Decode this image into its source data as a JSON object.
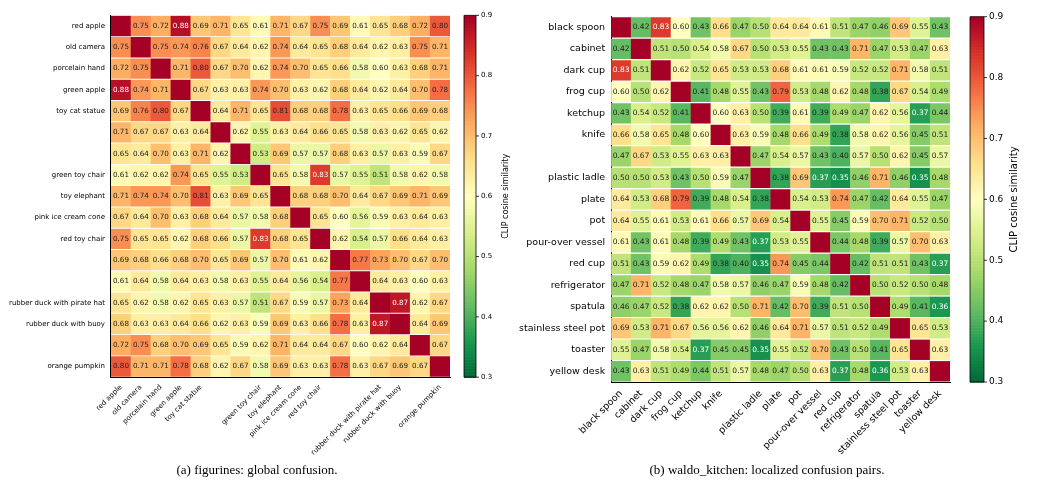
{
  "chart_data": [
    {
      "type": "heatmap",
      "title": "(a) figurines: global confusion.",
      "clabel": "CLIP cosine similarity",
      "clim": [
        0.3,
        0.9
      ],
      "cticks": [
        0.3,
        0.4,
        0.5,
        0.6,
        0.7,
        0.8,
        0.9
      ],
      "categories": [
        "red apple",
        "old camera",
        "porcelain hand",
        "green apple",
        "toy cat statue",
        null,
        null,
        "green toy chair",
        "toy elephant",
        "pink ice cream cone",
        "red toy chair",
        null,
        null,
        "rubber duck with pirate hat",
        "rubber duck with buoy",
        null,
        "orange pumpkin"
      ],
      "y_categories": [
        "red apple",
        "old camera",
        "porcelain hand",
        "green apple",
        "toy cat statue",
        null,
        null,
        "green toy chair",
        "toy elephant",
        "pink ice cream cone",
        "red toy chair",
        null,
        null,
        "rubber duck with pirate hat",
        "rubber duck with buoy",
        null,
        "orange pumpkin"
      ],
      "cells": [
        [
          0.9,
          0.75,
          0.72,
          0.88,
          0.69,
          0.71,
          0.65,
          0.61,
          0.71,
          0.67,
          0.75,
          0.69,
          0.61,
          0.65,
          0.68,
          0.72,
          0.8
        ],
        [
          0.75,
          0.9,
          0.75,
          0.74,
          0.76,
          0.67,
          0.64,
          0.62,
          0.74,
          0.64,
          0.65,
          0.68,
          0.64,
          0.62,
          0.63,
          0.75,
          0.71
        ],
        [
          0.72,
          0.75,
          0.9,
          0.71,
          0.8,
          0.67,
          0.7,
          0.62,
          0.74,
          0.7,
          0.65,
          0.66,
          0.58,
          0.6,
          0.63,
          0.68,
          0.71
        ],
        [
          0.88,
          0.74,
          0.71,
          0.9,
          0.67,
          0.63,
          0.63,
          0.74,
          0.7,
          0.63,
          0.62,
          0.68,
          0.64,
          0.62,
          0.64,
          0.7,
          0.78
        ],
        [
          0.69,
          0.76,
          0.8,
          0.67,
          0.9,
          0.64,
          0.71,
          0.65,
          0.81,
          0.68,
          0.68,
          0.78,
          0.63,
          0.65,
          0.66,
          0.69,
          0.68
        ],
        [
          0.71,
          0.67,
          0.67,
          0.63,
          0.64,
          0.9,
          0.62,
          0.55,
          0.63,
          0.64,
          0.66,
          0.65,
          0.58,
          0.63,
          0.62,
          0.65,
          0.62
        ],
        [
          0.65,
          0.64,
          0.7,
          0.63,
          0.71,
          0.62,
          0.9,
          0.53,
          0.69,
          0.57,
          0.57,
          0.68,
          0.63,
          0.57,
          0.63,
          0.59,
          0.67
        ],
        [
          0.61,
          0.62,
          0.62,
          0.74,
          0.65,
          0.55,
          0.53,
          0.9,
          0.65,
          0.58,
          0.83,
          0.57,
          0.55,
          0.51,
          0.58,
          0.62,
          0.58
        ],
        [
          0.71,
          0.74,
          0.74,
          0.7,
          0.81,
          0.63,
          0.69,
          0.65,
          0.9,
          0.68,
          0.68,
          0.7,
          0.64,
          0.67,
          0.69,
          0.71,
          0.69
        ],
        [
          0.67,
          0.64,
          0.7,
          0.63,
          0.68,
          0.64,
          0.57,
          0.58,
          0.68,
          0.9,
          0.65,
          0.6,
          0.56,
          0.59,
          0.63,
          0.64,
          0.63
        ],
        [
          0.75,
          0.65,
          0.65,
          0.62,
          0.68,
          0.66,
          0.57,
          0.83,
          0.68,
          0.65,
          0.9,
          0.62,
          0.54,
          0.57,
          0.66,
          0.64,
          0.63
        ],
        [
          0.69,
          0.68,
          0.66,
          0.68,
          0.7,
          0.65,
          0.69,
          0.57,
          0.7,
          0.61,
          0.62,
          0.9,
          0.77,
          0.73,
          0.7,
          0.67,
          0.7
        ],
        [
          0.61,
          0.64,
          0.58,
          0.64,
          0.63,
          0.58,
          0.63,
          0.55,
          0.64,
          0.56,
          0.54,
          0.77,
          0.9,
          0.64,
          0.63,
          0.6,
          0.63
        ],
        [
          0.65,
          0.62,
          0.58,
          0.62,
          0.65,
          0.63,
          0.57,
          0.51,
          0.67,
          0.59,
          0.57,
          0.73,
          0.64,
          0.9,
          0.87,
          0.62,
          0.67
        ],
        [
          0.68,
          0.63,
          0.63,
          0.64,
          0.66,
          0.62,
          0.63,
          0.59,
          0.69,
          0.63,
          0.66,
          0.78,
          0.63,
          0.87,
          0.9,
          0.64,
          0.69
        ],
        [
          0.72,
          0.75,
          0.68,
          0.7,
          0.69,
          0.65,
          0.59,
          0.62,
          0.71,
          0.64,
          0.64,
          0.67,
          0.6,
          0.62,
          0.64,
          0.9,
          0.67
        ],
        [
          0.8,
          0.71,
          0.71,
          0.78,
          0.68,
          0.62,
          0.67,
          0.58,
          0.69,
          0.63,
          0.63,
          0.78,
          0.63,
          0.67,
          0.69,
          0.67,
          0.9
        ]
      ],
      "cell_labels": [
        [
          null,
          "0.75",
          "0.72",
          "0.88",
          "0.69",
          "0.71",
          "0.65",
          "0.61",
          "0.71",
          "0.67",
          "0.75",
          "0.69",
          "0.61",
          "0.65",
          "0.68",
          "0.72",
          "0.80"
        ],
        [
          "0.75",
          null,
          "0.75",
          "0.74",
          "0.76",
          "0.67",
          "0.64",
          "0.62",
          "0.74",
          "0.64",
          "0.65",
          "0.68",
          "0.64",
          "0.62",
          "0.63",
          "0.75",
          "0.71"
        ],
        [
          "0.72",
          "0.75",
          null,
          "0.71",
          "0.80",
          "0.67",
          "0.70",
          "0.62",
          "0.74",
          "0.70",
          "0.65",
          "0.66",
          "0.58",
          "0.60",
          "0.63",
          "0.68",
          "0.71"
        ],
        [
          "0.88",
          "0.74",
          "0.71",
          null,
          "0.67",
          "0.63",
          "0.63",
          "0.74",
          "0.70",
          "0.63",
          "0.62",
          "0.68",
          "0.64",
          "0.62",
          "0.64",
          "0.70",
          "0.78"
        ],
        [
          "0.69",
          "0.76",
          "0.80",
          "0.67",
          null,
          "0.64",
          "0.71",
          "0.65",
          "0.81",
          "0.68",
          "0.68",
          "0.78",
          "0.63",
          "0.65",
          "0.66",
          "0.69",
          "0.68"
        ],
        [
          "0.71",
          "0.67",
          "0.67",
          "0.63",
          "0.64",
          null,
          "0.62",
          "0.55",
          "0.63",
          "0.64",
          "0.66",
          "0.65",
          "0.58",
          "0.63",
          "0.62",
          "0.65",
          "0.62"
        ],
        [
          "0.65",
          "0.64",
          "0.70",
          "0.63",
          "0.71",
          "0.62",
          null,
          "0.53",
          "0.69",
          "0.57",
          "0.57",
          "0.68",
          "0.63",
          "0.57",
          "0.63",
          "0.59",
          "0.67"
        ],
        [
          "0.61",
          "0.62",
          "0.62",
          "0.74",
          "0.65",
          "0.55",
          "0.53",
          null,
          "0.65",
          "0.58",
          "0.83",
          "0.57",
          "0.55",
          "0.51",
          "0.58",
          "0.62",
          "0.58"
        ],
        [
          "0.71",
          "0.74",
          "0.74",
          "0.70",
          "0.81",
          "0.63",
          "0.69",
          "0.65",
          null,
          "0.68",
          "0.68",
          "0.70",
          "0.64",
          "0.67",
          "0.69",
          "0.71",
          "0.69"
        ],
        [
          "0.67",
          "0.64",
          "0.70",
          "0.63",
          "0.68",
          "0.64",
          "0.57",
          "0.58",
          "0.68",
          null,
          "0.65",
          "0.60",
          "0.56",
          "0.59",
          "0.63",
          "0.64",
          "0.63"
        ],
        [
          "0.75",
          "0.65",
          "0.65",
          "0.62",
          "0.68",
          "0.66",
          "0.57",
          "0.83",
          "0.68",
          "0.65",
          null,
          "0.62",
          "0.54",
          "0.57",
          "0.66",
          "0.64",
          "0.63"
        ],
        [
          "0.69",
          "0.68",
          "0.66",
          "0.68",
          "0.70",
          "0.65",
          "0.69",
          "0.57",
          "0.70",
          "0.61",
          "0.62",
          null,
          "0.77",
          "0.73",
          "0.70",
          "0.67",
          "0.70"
        ],
        [
          "0.61",
          "0.64",
          "0.58",
          "0.64",
          "0.63",
          "0.58",
          "0.63",
          "0.55",
          "0.64",
          "0.56",
          "0.54",
          "0.77",
          null,
          "0.64",
          "0.63",
          "0.60",
          "0.63"
        ],
        [
          "0.65",
          "0.62",
          "0.58",
          "0.62",
          "0.65",
          "0.63",
          "0.57",
          "0.51",
          "0.67",
          "0.59",
          "0.57",
          "0.73",
          "0.64",
          null,
          "0.87",
          "0.62",
          "0.67"
        ],
        [
          "0.68",
          "0.63",
          "0.63",
          "0.64",
          "0.66",
          "0.62",
          "0.63",
          "0.59",
          "0.69",
          "0.63",
          "0.66",
          "0.78",
          "0.63",
          "0.87",
          null,
          "0.64",
          "0.69"
        ],
        [
          "0.72",
          "0.75",
          "0.68",
          "0.70",
          "0.69",
          "0.65",
          "0.59",
          "0.62",
          "0.71",
          "0.64",
          "0.64",
          "0.67",
          "0.60",
          "0.62",
          "0.64",
          null,
          "0.67"
        ],
        [
          "0.80",
          "0.71",
          "0.71",
          "0.78",
          "0.68",
          "0.62",
          "0.67",
          "0.58",
          "0.69",
          "0.63",
          "0.63",
          "0.78",
          "0.63",
          "0.67",
          "0.69",
          "0.67",
          null
        ]
      ]
    },
    {
      "type": "heatmap",
      "title": "(b) waldo_kitchen: localized confusion pairs.",
      "clabel": "CLIP cosine similarity",
      "clim": [
        0.3,
        0.9
      ],
      "cticks": [
        0.3,
        0.4,
        0.5,
        0.6,
        0.7,
        0.8,
        0.9
      ],
      "categories": [
        "black spoon",
        "cabinet",
        "dark cup",
        "frog cup",
        "ketchup",
        "knife",
        null,
        "plastic ladle",
        "plate",
        "pot",
        "pour-over vessel",
        "red cup",
        "refrigerator",
        "spatula",
        "stainless steel pot",
        "toaster",
        "yellow desk"
      ],
      "y_categories": [
        "black spoon",
        "cabinet",
        "dark cup",
        "frog cup",
        "ketchup",
        "knife",
        null,
        "plastic ladle",
        "plate",
        "pot",
        "pour-over vessel",
        "red cup",
        "refrigerator",
        "spatula",
        "stainless steel pot",
        "toaster",
        "yellow desk"
      ],
      "cells": [
        [
          0.9,
          0.42,
          0.83,
          0.6,
          0.43,
          0.66,
          0.47,
          0.5,
          0.64,
          0.64,
          0.61,
          0.51,
          0.47,
          0.46,
          0.69,
          0.55,
          0.43
        ],
        [
          0.42,
          0.9,
          0.51,
          0.5,
          0.54,
          0.58,
          0.67,
          0.5,
          0.53,
          0.55,
          0.43,
          0.43,
          0.71,
          0.47,
          0.53,
          0.47,
          0.63
        ],
        [
          0.83,
          0.51,
          0.9,
          0.62,
          0.52,
          0.65,
          0.53,
          0.53,
          0.68,
          0.61,
          0.61,
          0.59,
          0.52,
          0.52,
          0.71,
          0.58,
          0.51
        ],
        [
          0.6,
          0.5,
          0.62,
          0.9,
          0.41,
          0.48,
          0.55,
          0.43,
          0.79,
          0.53,
          0.48,
          0.62,
          0.48,
          0.38,
          0.67,
          0.54,
          0.49
        ],
        [
          0.43,
          0.54,
          0.52,
          0.41,
          0.9,
          0.6,
          0.63,
          0.5,
          0.39,
          0.61,
          0.39,
          0.49,
          0.47,
          0.62,
          0.56,
          0.37,
          0.44
        ],
        [
          0.66,
          0.58,
          0.65,
          0.48,
          0.6,
          0.9,
          0.63,
          0.59,
          0.48,
          0.66,
          0.49,
          0.38,
          0.58,
          0.62,
          0.56,
          0.45,
          0.51
        ],
        [
          0.47,
          0.67,
          0.53,
          0.55,
          0.63,
          0.63,
          0.9,
          0.47,
          0.54,
          0.57,
          0.43,
          0.4,
          0.57,
          0.5,
          0.62,
          0.45,
          0.57
        ],
        [
          0.5,
          0.5,
          0.53,
          0.43,
          0.5,
          0.59,
          0.47,
          0.9,
          0.38,
          0.69,
          0.37,
          0.35,
          0.46,
          0.71,
          0.46,
          0.35,
          0.48
        ],
        [
          0.64,
          0.53,
          0.68,
          0.79,
          0.39,
          0.48,
          0.54,
          0.38,
          0.9,
          0.54,
          0.53,
          0.74,
          0.47,
          0.42,
          0.64,
          0.55,
          0.47
        ],
        [
          0.64,
          0.55,
          0.61,
          0.53,
          0.61,
          0.66,
          0.57,
          0.69,
          0.54,
          0.9,
          0.55,
          0.45,
          0.59,
          0.7,
          0.71,
          0.52,
          0.5
        ],
        [
          0.61,
          0.43,
          0.61,
          0.48,
          0.39,
          0.49,
          0.43,
          0.37,
          0.53,
          0.55,
          0.9,
          0.44,
          0.48,
          0.39,
          0.57,
          0.7,
          0.63
        ],
        [
          0.51,
          0.43,
          0.59,
          0.62,
          0.49,
          0.38,
          0.4,
          0.35,
          0.74,
          0.45,
          0.44,
          0.9,
          0.42,
          0.51,
          0.51,
          0.43,
          0.37
        ],
        [
          0.47,
          0.71,
          0.52,
          0.48,
          0.47,
          0.58,
          0.57,
          0.46,
          0.47,
          0.59,
          0.48,
          0.42,
          0.9,
          0.5,
          0.52,
          0.5,
          0.48
        ],
        [
          0.46,
          0.47,
          0.52,
          0.38,
          0.62,
          0.62,
          0.5,
          0.71,
          0.42,
          0.7,
          0.39,
          0.51,
          0.5,
          0.9,
          0.49,
          0.41,
          0.36
        ],
        [
          0.69,
          0.53,
          0.71,
          0.67,
          0.56,
          0.56,
          0.62,
          0.46,
          0.64,
          0.71,
          0.57,
          0.51,
          0.52,
          0.49,
          0.9,
          0.65,
          0.53
        ],
        [
          0.55,
          0.47,
          0.58,
          0.54,
          0.37,
          0.45,
          0.45,
          0.35,
          0.55,
          0.52,
          0.7,
          0.43,
          0.5,
          0.41,
          0.65,
          0.9,
          0.63
        ],
        [
          0.43,
          0.63,
          0.51,
          0.49,
          0.44,
          0.51,
          0.57,
          0.48,
          0.47,
          0.5,
          0.63,
          0.37,
          0.48,
          0.36,
          0.53,
          0.63,
          0.9
        ]
      ],
      "cell_labels": [
        [
          null,
          "0.42",
          "0.83",
          "0.60",
          "0.43",
          "0.66",
          "0.47",
          "0.50",
          "0.64",
          "0.64",
          "0.61",
          "0.51",
          "0.47",
          "0.46",
          "0.69",
          "0.55",
          "0.43"
        ],
        [
          "0.42",
          null,
          "0.51",
          "0.50",
          "0.54",
          "0.58",
          "0.67",
          "0.50",
          "0.53",
          "0.55",
          "0.43",
          "0.43",
          "0.71",
          "0.47",
          "0.53",
          "0.47",
          "0.63"
        ],
        [
          "0.83",
          "0.51",
          null,
          "0.62",
          "0.52",
          "0.65",
          "0.53",
          "0.53",
          "0.68",
          "0.61",
          "0.61",
          "0.59",
          "0.52",
          "0.52",
          "0.71",
          "0.58",
          "0.51"
        ],
        [
          "0.60",
          "0.50",
          "0.62",
          null,
          "0.41",
          "0.48",
          "0.55",
          "0.43",
          "0.79",
          "0.53",
          "0.48",
          "0.62",
          "0.48",
          "0.38",
          "0.67",
          "0.54",
          "0.49"
        ],
        [
          "0.43",
          "0.54",
          "0.52",
          "0.41",
          null,
          "0.60",
          "0.63",
          "0.50",
          "0.39",
          "0.61",
          "0.39",
          "0.49",
          "0.47",
          "0.62",
          "0.56",
          "0.37",
          "0.44"
        ],
        [
          "0.66",
          "0.58",
          "0.65",
          "0.48",
          "0.60",
          null,
          "0.63",
          "0.59",
          "0.48",
          "0.66",
          "0.49",
          "0.38",
          "0.58",
          "0.62",
          "0.56",
          "0.45",
          "0.51"
        ],
        [
          "0.47",
          "0.67",
          "0.53",
          "0.55",
          "0.63",
          "0.63",
          null,
          "0.47",
          "0.54",
          "0.57",
          "0.43",
          "0.40",
          "0.57",
          "0.50",
          "0.62",
          "0.45",
          "0.57"
        ],
        [
          "0.50",
          "0.50",
          "0.53",
          "0.43",
          "0.50",
          "0.59",
          "0.47",
          null,
          "0.38",
          "0.69",
          "0.37",
          "0.35",
          "0.46",
          "0.71",
          "0.46",
          "0.35",
          "0.48"
        ],
        [
          "0.64",
          "0.53",
          "0.68",
          "0.79",
          "0.39",
          "0.48",
          "0.54",
          "0.38",
          null,
          "0.54",
          "0.53",
          "0.74",
          "0.47",
          "0.42",
          "0.64",
          "0.55",
          "0.47"
        ],
        [
          "0.64",
          "0.55",
          "0.61",
          "0.53",
          "0.61",
          "0.66",
          "0.57",
          "0.69",
          "0.54",
          null,
          "0.55",
          "0.45",
          "0.59",
          "0.70",
          "0.71",
          "0.52",
          "0.50"
        ],
        [
          "0.61",
          "0.43",
          "0.61",
          "0.48",
          "0.39",
          "0.49",
          "0.43",
          "0.37",
          "0.53",
          "0.55",
          null,
          "0.44",
          "0.48",
          "0.39",
          "0.57",
          "0.70",
          "0.63"
        ],
        [
          "0.51",
          "0.43",
          "0.59",
          "0.62",
          "0.49",
          "0.38",
          "0.40",
          "0.35",
          "0.74",
          "0.45",
          "0.44",
          null,
          "0.42",
          "0.51",
          "0.51",
          "0.43",
          "0.37"
        ],
        [
          "0.47",
          "0.71",
          "0.52",
          "0.48",
          "0.47",
          "0.58",
          "0.57",
          "0.46",
          "0.47",
          "0.59",
          "0.48",
          "0.42",
          null,
          "0.50",
          "0.52",
          "0.50",
          "0.48"
        ],
        [
          "0.46",
          "0.47",
          "0.52",
          "0.38",
          "0.62",
          "0.62",
          "0.50",
          "0.71",
          "0.42",
          "0.70",
          "0.39",
          "0.51",
          "0.50",
          null,
          "0.49",
          "0.41",
          "0.36"
        ],
        [
          "0.69",
          "0.53",
          "0.71",
          "0.67",
          "0.56",
          "0.56",
          "0.62",
          "0.46",
          "0.64",
          "0.71",
          "0.57",
          "0.51",
          "0.52",
          "0.49",
          null,
          "0.65",
          "0.53"
        ],
        [
          "0.55",
          "0.47",
          "0.58",
          "0.54",
          "0.37",
          "0.45",
          "0.45",
          "0.35",
          "0.55",
          "0.52",
          "0.70",
          "0.43",
          "0.50",
          "0.41",
          "0.65",
          null,
          "0.63"
        ],
        [
          "0.43",
          "0.63",
          "0.51",
          "0.49",
          "0.44",
          "0.51",
          "0.57",
          "0.48",
          "0.47",
          "0.50",
          "0.63",
          "0.37",
          "0.48",
          "0.36",
          "0.53",
          "0.63",
          null
        ]
      ]
    }
  ]
}
